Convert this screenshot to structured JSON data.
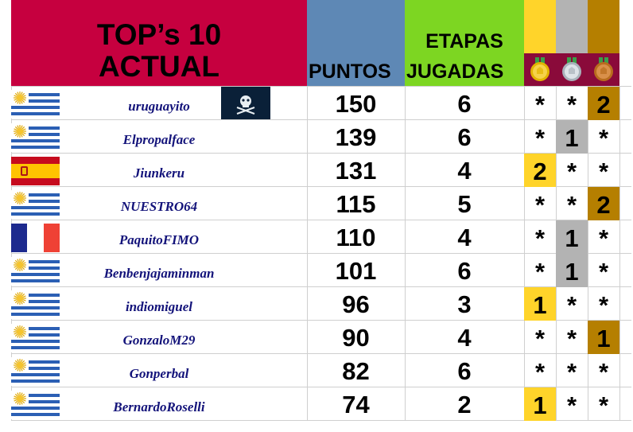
{
  "header": {
    "title_line1": "TOP’s 10",
    "title_line2": "ACTUAL",
    "points_label": "PUNTOS",
    "stages_line1": "ETAPAS",
    "stages_line2": "JUGADAS"
  },
  "colors": {
    "title_bg": "#c6003f",
    "points_bg": "#5e88b5",
    "stages_bg": "#7dd622",
    "gold": "#ffd42a",
    "silver": "#b3b3b3",
    "bronze": "#b57f00",
    "name_text": "#13137a"
  },
  "medal_icons": [
    "gold-medal-icon",
    "silver-medal-icon",
    "bronze-medal-icon"
  ],
  "rows": [
    {
      "flag": "uruguay",
      "name": "uruguayito",
      "points": "150",
      "stages": "6",
      "gold": "*",
      "silver": "*",
      "bronze": "2",
      "avatar": "pirate-skull-icon"
    },
    {
      "flag": "uruguay",
      "name": "Elpropalface",
      "points": "139",
      "stages": "6",
      "gold": "*",
      "silver": "1",
      "bronze": "*"
    },
    {
      "flag": "spain",
      "name": "Jiunkeru",
      "points": "131",
      "stages": "4",
      "gold": "2",
      "silver": "*",
      "bronze": "*"
    },
    {
      "flag": "uruguay",
      "name": "NUESTRO64",
      "points": "115",
      "stages": "5",
      "gold": "*",
      "silver": "*",
      "bronze": "2"
    },
    {
      "flag": "france",
      "name": "PaquitoFIMO",
      "points": "110",
      "stages": "4",
      "gold": "*",
      "silver": "1",
      "bronze": "*"
    },
    {
      "flag": "uruguay",
      "name": "Benbenjajaminman",
      "points": "101",
      "stages": "6",
      "gold": "*",
      "silver": "1",
      "bronze": "*"
    },
    {
      "flag": "uruguay",
      "name": "indiomiguel",
      "points": "96",
      "stages": "3",
      "gold": "1",
      "silver": "*",
      "bronze": "*"
    },
    {
      "flag": "uruguay",
      "name": "GonzaloM29",
      "points": "90",
      "stages": "4",
      "gold": "*",
      "silver": "*",
      "bronze": "1"
    },
    {
      "flag": "uruguay",
      "name": "Gonperbal",
      "points": "82",
      "stages": "6",
      "gold": "*",
      "silver": "*",
      "bronze": "*"
    },
    {
      "flag": "uruguay",
      "name": "BernardoRoselli",
      "points": "74",
      "stages": "2",
      "gold": "1",
      "silver": "*",
      "bronze": "*"
    }
  ]
}
